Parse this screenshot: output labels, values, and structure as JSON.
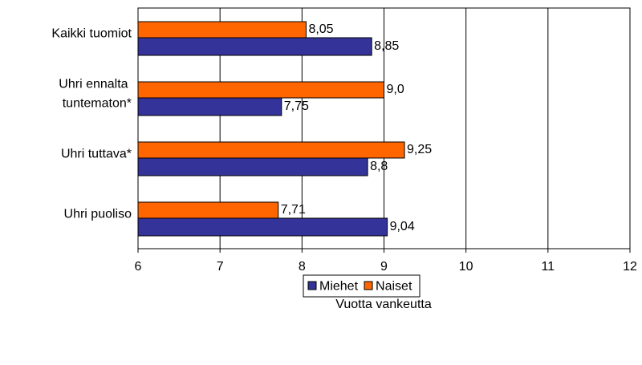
{
  "chart_data": {
    "type": "bar",
    "orientation": "horizontal",
    "categories": [
      "Kaikki tuomiot",
      "Uhri ennalta tuntematon*",
      "Uhri tuttava*",
      "Uhri puoliso"
    ],
    "series": [
      {
        "name": "Miehet",
        "color": "#333399",
        "values": [
          8.85,
          7.75,
          8.8,
          9.04
        ],
        "value_labels": [
          "8,85",
          "7,75",
          "8,8",
          "9,04"
        ]
      },
      {
        "name": "Naiset",
        "color": "#ff6600",
        "values": [
          8.05,
          9.0,
          9.25,
          7.71
        ],
        "value_labels": [
          "8,05",
          "9,0",
          "9,25",
          "7,71"
        ]
      }
    ],
    "xlabel": "Vuotta vankeutta",
    "xlim": [
      6,
      12
    ],
    "xticks": [
      6,
      7,
      8,
      9,
      10,
      11,
      12
    ],
    "grid": true,
    "legend": "bottom"
  }
}
